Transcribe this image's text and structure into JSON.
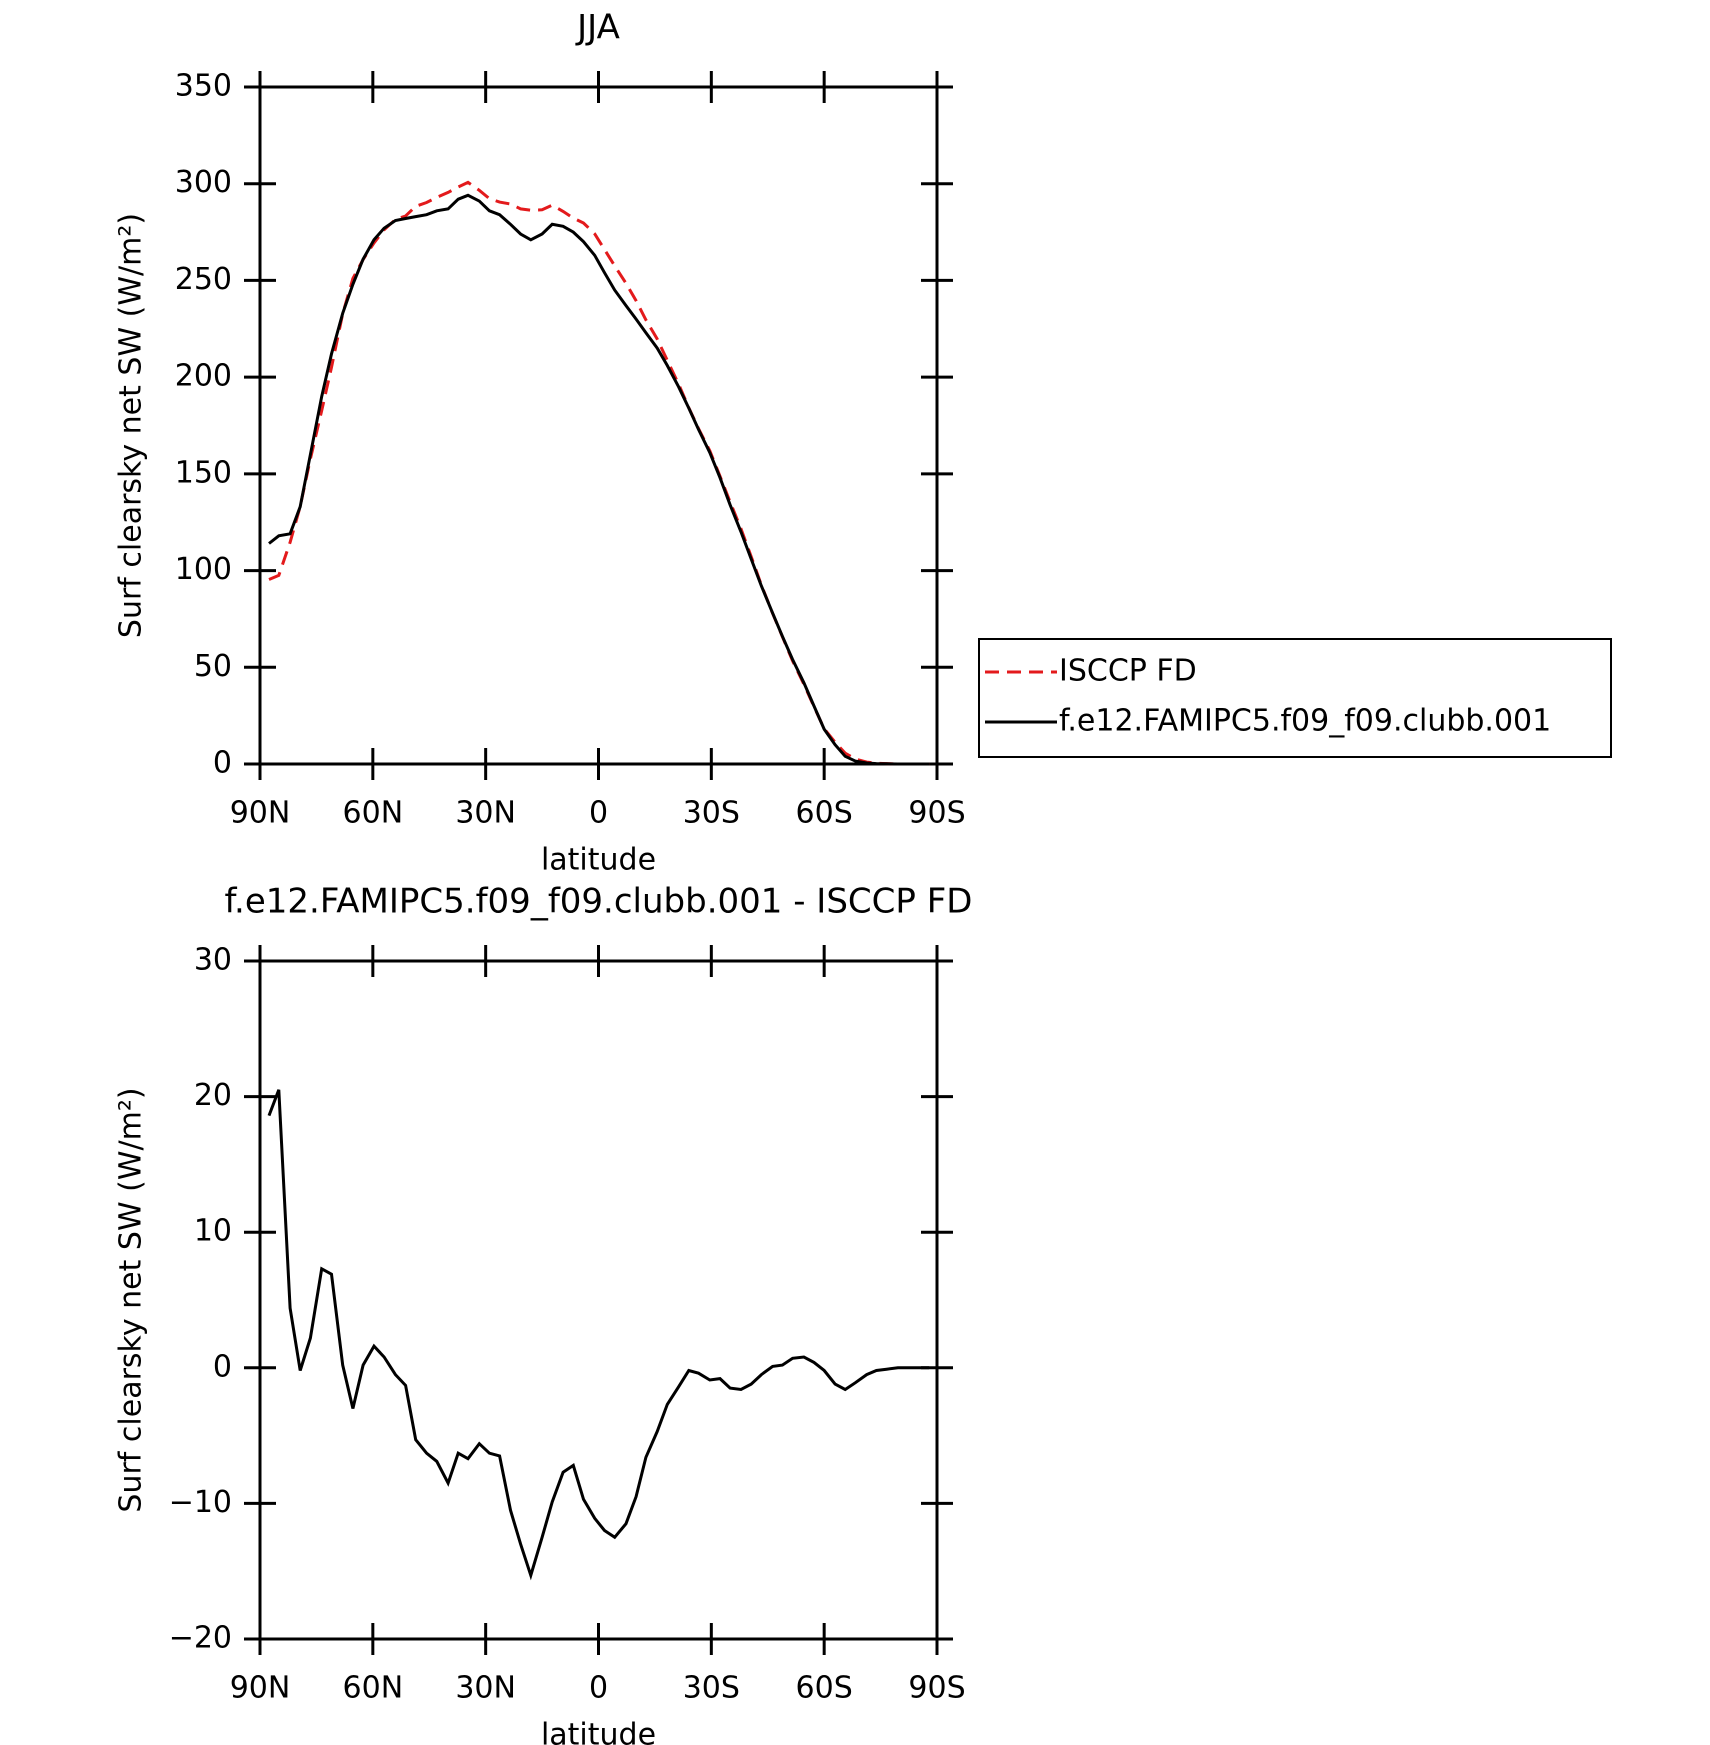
{
  "chart_data": [
    {
      "type": "line",
      "title": "JJA",
      "xlabel": "latitude",
      "ylabel": "Surf clearsky net SW (W/m²)",
      "x": [
        87.6,
        85,
        82,
        79.3,
        76.6,
        73.6,
        71,
        68,
        65.3,
        62.6,
        59.7,
        57,
        54,
        51.3,
        48.6,
        45.7,
        43,
        40,
        37.3,
        34.7,
        31.7,
        29,
        26.3,
        23.4,
        20.7,
        18,
        15,
        12.3,
        9.4,
        6.7,
        4,
        1,
        -1.6,
        -4.3,
        -7.3,
        -10,
        -12.6,
        -15.6,
        -18.3,
        -21.3,
        -24,
        -26.6,
        -29.6,
        -32.3,
        -35,
        -37.9,
        -40.6,
        -43.3,
        -46.3,
        -48.9,
        -51.6,
        -54.6,
        -57.3,
        -60,
        -62.9,
        -65.6,
        -68.3,
        -71.3,
        -73.9,
        -76.6,
        -79.6,
        -82.3,
        -85,
        -87.9
      ],
      "series": [
        {
          "name": "ISCCP FD",
          "color": "#e31a1c",
          "dashed": true,
          "values": [
            95.4,
            97.5,
            114.6,
            133.2,
            157.8,
            182.7,
            205.1,
            232.8,
            251,
            260.8,
            269.4,
            276.2,
            281.5,
            283.3,
            288.3,
            290.3,
            292.9,
            295.5,
            298.3,
            300.7,
            296.6,
            292.3,
            290.5,
            289.5,
            287,
            286.3,
            286.5,
            288.9,
            285.7,
            282.2,
            279.7,
            274.1,
            266,
            257.5,
            248.5,
            239.5,
            229.6,
            219.7,
            208.7,
            196.4,
            184.2,
            173.4,
            161.9,
            148.8,
            135.5,
            121.6,
            107.2,
            92.5,
            77.9,
            65.8,
            53.3,
            41.2,
            29.6,
            18.2,
            11.2,
            5.6,
            2.6,
            1,
            0.4,
            0.2,
            0,
            0,
            0,
            0
          ]
        },
        {
          "name": "f.e12.FAMIPC5.f09_f09.clubb.001",
          "color": "#000000",
          "dashed": false,
          "values": [
            114,
            118,
            119,
            133,
            160,
            190,
            212,
            233,
            248,
            261,
            271,
            277,
            281,
            282,
            283,
            284,
            286,
            287,
            292,
            294,
            291,
            286,
            284,
            279,
            274,
            271,
            274,
            279,
            278,
            275,
            270,
            263,
            254,
            245,
            237,
            230,
            223,
            215,
            206,
            195,
            184,
            173,
            161,
            148,
            134,
            120,
            106,
            92,
            78,
            66,
            54,
            42,
            30,
            18,
            10,
            4,
            1.5,
            0.5,
            0.2,
            0.1,
            0,
            0,
            0,
            0
          ]
        }
      ],
      "xlim": [
        90,
        -90
      ],
      "xticks": [
        {
          "value": 90,
          "label": "90N"
        },
        {
          "value": 60,
          "label": "60N"
        },
        {
          "value": 30,
          "label": "30N"
        },
        0,
        {
          "value": -30,
          "label": "30S"
        },
        {
          "value": -60,
          "label": "60S"
        },
        {
          "value": -90,
          "label": "90S"
        }
      ],
      "ylim": [
        0,
        350
      ],
      "yticks": [
        0,
        50,
        100,
        150,
        200,
        250,
        300,
        350
      ],
      "legend": "right"
    },
    {
      "type": "line",
      "title": "f.e12.FAMIPC5.f09_f09.clubb.001 - ISCCP FD",
      "xlabel": "latitude",
      "ylabel": "Surf clearsky net SW (W/m²)",
      "x": [
        87.6,
        85,
        82,
        79.3,
        76.6,
        73.6,
        71,
        68,
        65.3,
        62.6,
        59.7,
        57,
        54,
        51.3,
        48.6,
        45.7,
        43,
        40,
        37.3,
        34.7,
        31.7,
        29,
        26.3,
        23.4,
        20.7,
        18,
        15,
        12.3,
        9.4,
        6.7,
        4,
        1,
        -1.6,
        -4.3,
        -7.3,
        -10,
        -12.6,
        -15.6,
        -18.3,
        -21.3,
        -24,
        -26.6,
        -29.6,
        -32.3,
        -35,
        -37.9,
        -40.6,
        -43.3,
        -46.3,
        -48.9,
        -51.6,
        -54.6,
        -57.3,
        -60,
        -62.9,
        -65.6,
        -68.3,
        -71.3,
        -73.9,
        -76.6,
        -79.6,
        -82.3,
        -85,
        -87.9
      ],
      "series": [
        {
          "color": "#000000",
          "dashed": false,
          "values": [
            18.6,
            20.5,
            4.4,
            -0.2,
            2.2,
            7.3,
            6.9,
            0.2,
            -3,
            0.2,
            1.6,
            0.8,
            -0.5,
            -1.3,
            -5.3,
            -6.3,
            -6.9,
            -8.5,
            -6.3,
            -6.7,
            -5.6,
            -6.3,
            -6.5,
            -10.5,
            -13,
            -15.3,
            -12.5,
            -9.9,
            -7.7,
            -7.2,
            -9.7,
            -11.1,
            -12,
            -12.5,
            -11.5,
            -9.5,
            -6.6,
            -4.7,
            -2.7,
            -1.4,
            -0.2,
            -0.4,
            -0.9,
            -0.8,
            -1.5,
            -1.6,
            -1.2,
            -0.5,
            0.1,
            0.2,
            0.7,
            0.8,
            0.4,
            -0.2,
            -1.2,
            -1.6,
            -1.1,
            -0.5,
            -0.2,
            -0.1,
            0,
            0,
            0,
            0
          ]
        }
      ],
      "xlim": [
        90,
        -90
      ],
      "xticks": [
        {
          "value": 90,
          "label": "90N"
        },
        {
          "value": 60,
          "label": "60N"
        },
        {
          "value": 30,
          "label": "30N"
        },
        0,
        {
          "value": -30,
          "label": "30S"
        },
        {
          "value": -60,
          "label": "60S"
        },
        {
          "value": -90,
          "label": "90S"
        }
      ],
      "ylim": [
        -20,
        30
      ],
      "yticks": [
        {
          "value": -20,
          "label": "−20"
        },
        {
          "value": -10,
          "label": "−10"
        },
        0,
        10,
        20,
        30
      ]
    }
  ]
}
